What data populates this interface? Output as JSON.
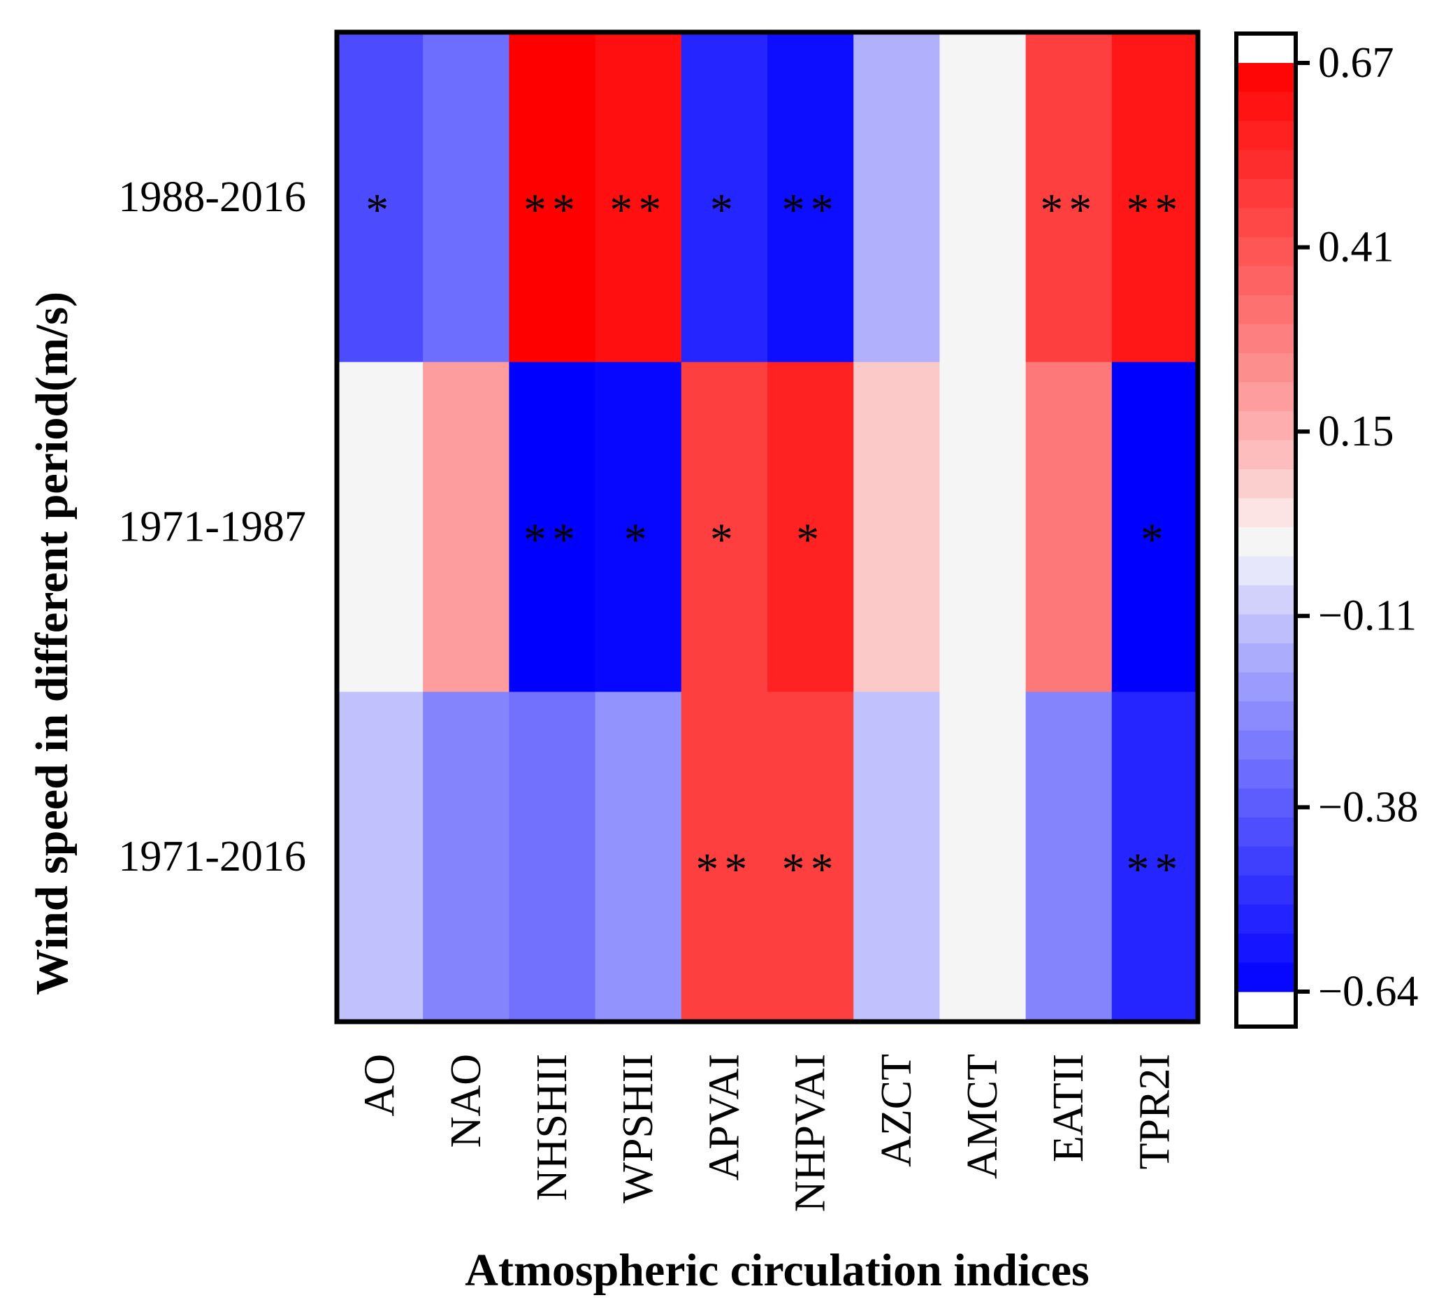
{
  "chart_data": {
    "type": "heatmap",
    "title": "",
    "xlabel": "Atmospheric circulation indices",
    "ylabel": "Wind speed in different period(m/s)",
    "x_categories": [
      "AO",
      "NAO",
      "NHSHII",
      "WPSHII",
      "APVAI",
      "NHPVAI",
      "AZCT",
      "AMCT",
      "EATII",
      "TPR2I"
    ],
    "y_categories": [
      "1988-2016",
      "1971-1987",
      "1971-2016"
    ],
    "values": [
      [
        -0.42,
        -0.33,
        0.67,
        0.62,
        -0.53,
        -0.6,
        -0.16,
        0.0,
        0.47,
        0.6
      ],
      [
        0.0,
        0.2,
        -0.64,
        -0.62,
        0.47,
        0.56,
        0.09,
        0.0,
        0.3,
        -0.64
      ],
      [
        -0.12,
        -0.27,
        -0.32,
        -0.23,
        0.47,
        0.47,
        -0.12,
        0.0,
        -0.27,
        -0.53
      ]
    ],
    "significance": [
      [
        "*",
        "",
        "**",
        "**",
        "*",
        "**",
        "",
        "",
        "**",
        "**"
      ],
      [
        "",
        "",
        "**",
        "*",
        "*",
        "*",
        "",
        "",
        "",
        "*"
      ],
      [
        "",
        "",
        "",
        "",
        "**",
        "**",
        "",
        "",
        "",
        "**"
      ]
    ],
    "colorbar": {
      "ticks": [
        0.67,
        0.41,
        0.15,
        -0.11,
        -0.38,
        -0.64
      ],
      "tick_labels": [
        "0.67",
        "0.41",
        "0.15",
        "−0.11",
        "−0.38",
        "−0.64"
      ],
      "range": [
        -0.64,
        0.67
      ],
      "neutral_band": [
        -0.04,
        0.03
      ]
    },
    "colors": {
      "negative_max": "#0000ff",
      "positive_max": "#ff0000",
      "neutral": "#f5f5f5"
    }
  }
}
